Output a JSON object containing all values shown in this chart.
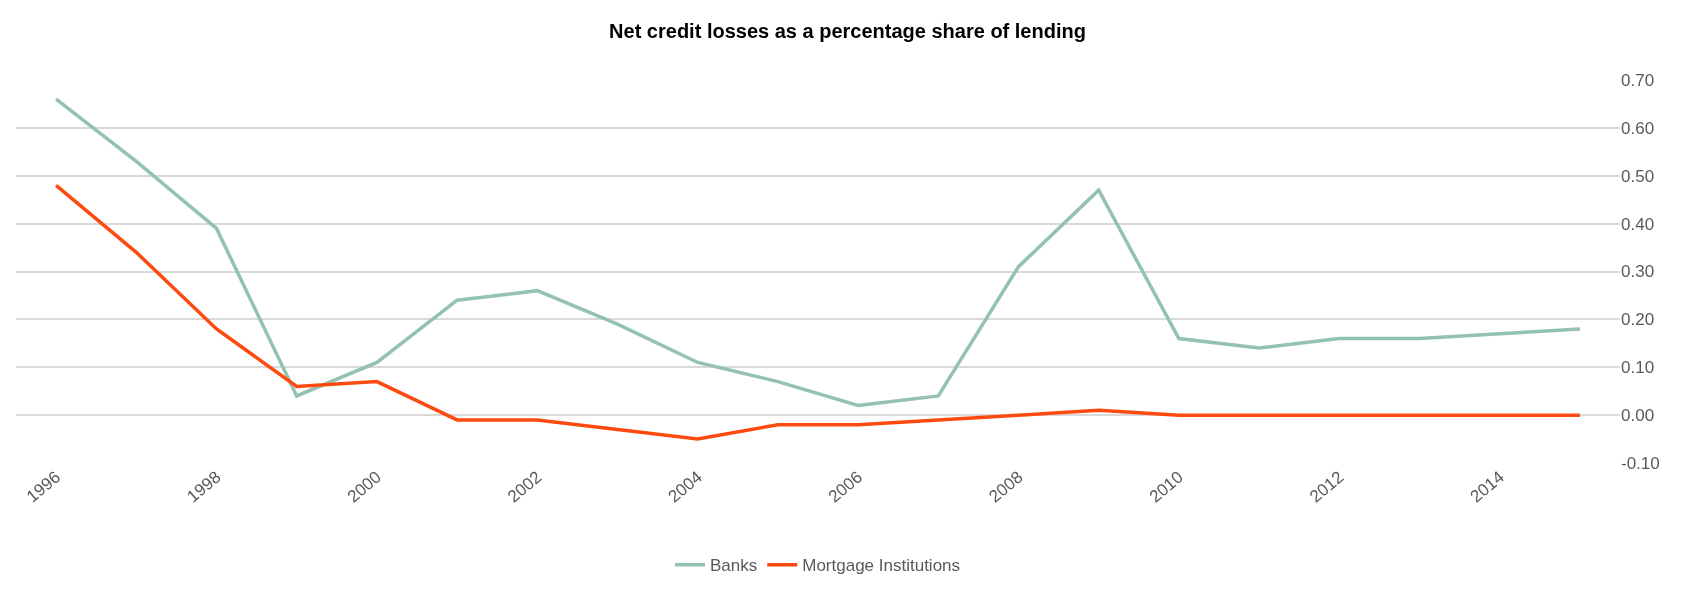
{
  "chart_data": {
    "type": "line",
    "title": "Net credit losses as a percentage share of lending",
    "x": [
      1996,
      1997,
      1998,
      1999,
      2000,
      2001,
      2002,
      2003,
      2004,
      2005,
      2006,
      2007,
      2008,
      2009,
      2010,
      2011,
      2012,
      2013,
      2014,
      2015
    ],
    "series": [
      {
        "name": "Banks",
        "color": "#93c2ae",
        "values": [
          0.66,
          0.53,
          0.39,
          0.04,
          0.11,
          0.24,
          0.26,
          0.19,
          0.11,
          0.07,
          0.02,
          0.04,
          0.31,
          0.47,
          0.16,
          0.14,
          0.16,
          0.16,
          0.17,
          0.18
        ]
      },
      {
        "name": "Mortgage Institutions",
        "color": "#ff4a0f",
        "values": [
          0.48,
          0.34,
          0.18,
          0.06,
          0.07,
          -0.01,
          -0.01,
          -0.03,
          -0.05,
          -0.02,
          -0.02,
          -0.01,
          0.0,
          0.01,
          0.0,
          0.0,
          0.0,
          0.0,
          0.0,
          0.0
        ]
      }
    ],
    "xlim": [
      1995.5,
      2015.5
    ],
    "xticks": [
      1996,
      1998,
      2000,
      2002,
      2004,
      2006,
      2008,
      2010,
      2012,
      2014
    ],
    "ylim": [
      -0.1,
      0.7
    ],
    "yticks": [
      {
        "value": -0.1,
        "label": "-0.10"
      },
      {
        "value": 0,
        "label": "0.00"
      },
      {
        "value": 0.1,
        "label": "0.10"
      },
      {
        "value": 0.2,
        "label": "0.20"
      },
      {
        "value": 0.3,
        "label": "0.30"
      },
      {
        "value": 0.4,
        "label": "0.40"
      },
      {
        "value": 0.5,
        "label": "0.50"
      },
      {
        "value": 0.6,
        "label": "0.60"
      },
      {
        "value": 0.7,
        "label": "0.70"
      }
    ],
    "grid": "y",
    "legend": "bottom",
    "marker": "none",
    "line_style": "solid"
  }
}
